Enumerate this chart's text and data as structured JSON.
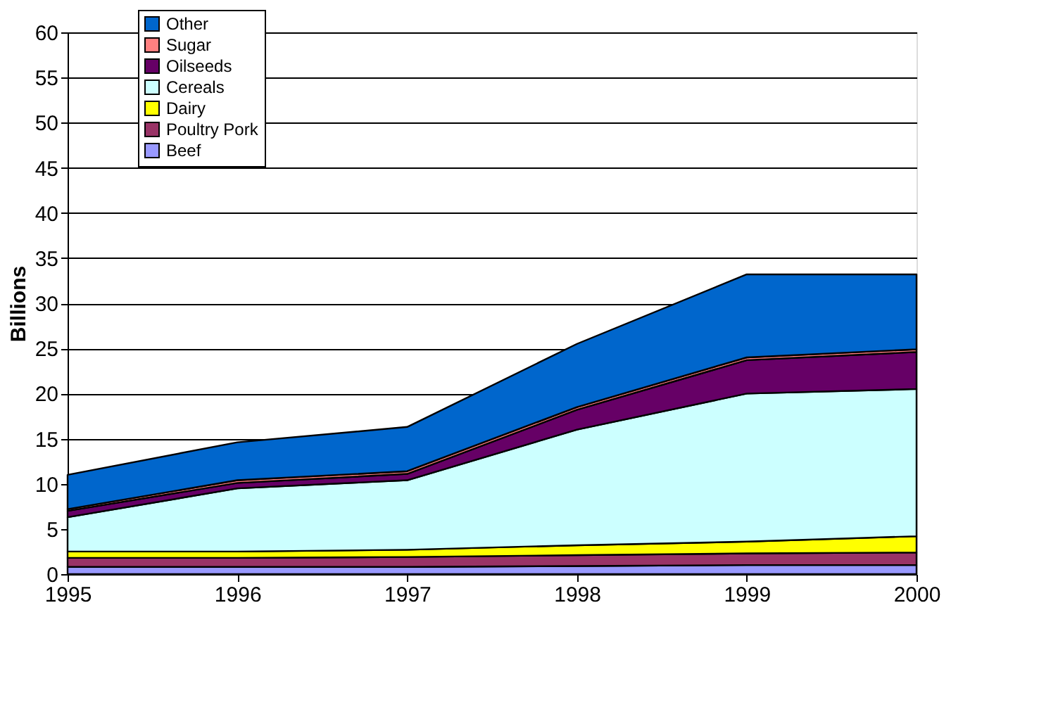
{
  "chart_data": {
    "type": "area",
    "stacked": true,
    "ylabel": "Billions",
    "x": [
      1995,
      1996,
      1997,
      1998,
      1999,
      2000
    ],
    "series": [
      {
        "name": "Beef",
        "color": "#9999ff",
        "values": [
          0.8,
          0.8,
          0.8,
          0.9,
          1.0,
          1.0
        ]
      },
      {
        "name": "Poultry Pork",
        "color": "#993366",
        "values": [
          1.0,
          1.0,
          1.1,
          1.2,
          1.3,
          1.4
        ]
      },
      {
        "name": "Dairy",
        "color": "#ffff00",
        "values": [
          0.7,
          0.7,
          0.8,
          1.1,
          1.3,
          1.8
        ]
      },
      {
        "name": "Cereals",
        "color": "#ccffff",
        "values": [
          3.8,
          7.0,
          7.7,
          12.8,
          16.4,
          16.3
        ]
      },
      {
        "name": "Oilseeds",
        "color": "#660066",
        "values": [
          0.7,
          0.6,
          0.7,
          2.2,
          3.7,
          4.1
        ]
      },
      {
        "name": "Sugar",
        "color": "#ff8080",
        "values": [
          0.2,
          0.3,
          0.3,
          0.3,
          0.3,
          0.3
        ]
      },
      {
        "name": "Other",
        "color": "#0066cc",
        "values": [
          3.8,
          4.2,
          4.9,
          7.0,
          9.2,
          8.3
        ]
      }
    ],
    "xlim": [
      1995,
      2000
    ],
    "xticks": [
      1995,
      1996,
      1997,
      1998,
      1999,
      2000
    ],
    "ylim": [
      0,
      60
    ],
    "yticks": [
      0,
      5,
      10,
      15,
      20,
      25,
      30,
      35,
      40,
      45,
      50,
      55,
      60
    ],
    "grid": "y",
    "legend": "top left"
  }
}
